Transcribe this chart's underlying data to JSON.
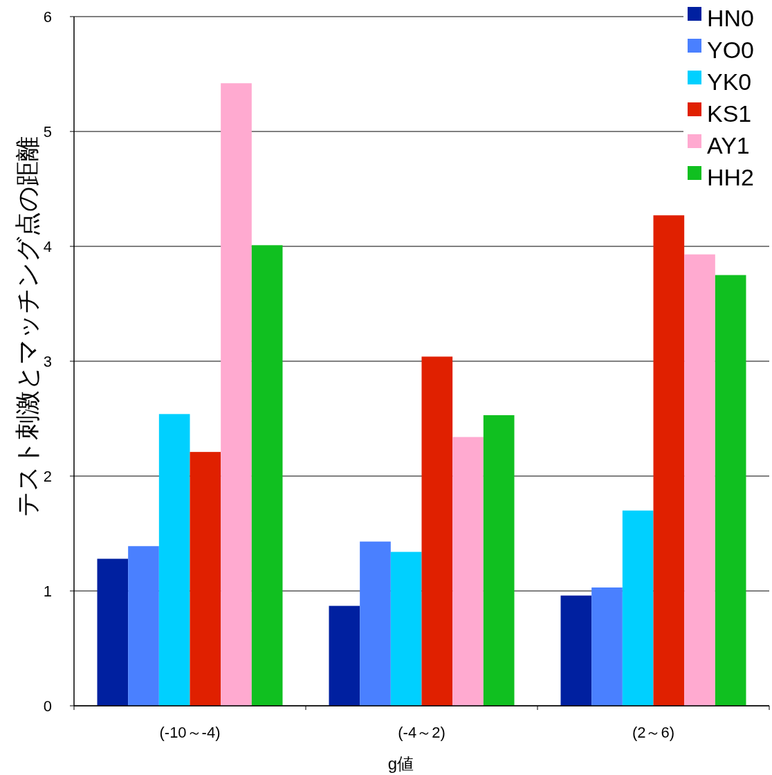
{
  "chart_data": {
    "type": "bar",
    "xlabel": "g値",
    "ylabel": "テスト刺激とマッチング点の距離",
    "categories": [
      "(-10～-4)",
      "(-4～2)",
      "(2～6)"
    ],
    "series": [
      {
        "name": "HN0",
        "color": "#0020a0",
        "values": [
          1.28,
          0.87,
          0.96
        ]
      },
      {
        "name": "YO0",
        "color": "#4a80ff",
        "values": [
          1.39,
          1.43,
          1.03
        ]
      },
      {
        "name": "YK0",
        "color": "#00d0ff",
        "values": [
          2.54,
          1.34,
          1.7
        ]
      },
      {
        "name": "KS1",
        "color": "#e02000",
        "values": [
          2.21,
          3.04,
          4.27
        ]
      },
      {
        "name": "AY1",
        "color": "#ffaad0",
        "values": [
          5.42,
          2.34,
          3.93
        ]
      },
      {
        "name": "HH2",
        "color": "#10c020",
        "values": [
          4.01,
          2.53,
          3.75
        ]
      }
    ],
    "ylim": [
      0,
      6
    ],
    "yticks": [
      0,
      1,
      2,
      3,
      4,
      5,
      6
    ],
    "grid": "y",
    "legend": "top right"
  }
}
